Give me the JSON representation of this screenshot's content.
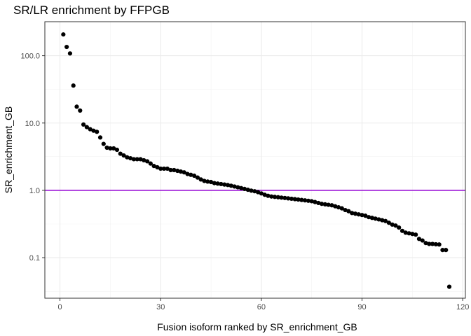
{
  "chart_data": {
    "type": "scatter",
    "title": "SR/LR enrichment by FFPGB",
    "xlabel": "Fusion isoform ranked by SR_enrichment_GB",
    "ylabel": "SR_enrichment_GB",
    "x_scale": "linear",
    "y_scale": "log10",
    "xlim": [
      -4.5,
      120.8
    ],
    "ylim": [
      0.025,
      320
    ],
    "x_ticks": [
      0,
      30,
      60,
      90,
      120
    ],
    "x_tick_labels": [
      "0",
      "30",
      "60",
      "90",
      "120"
    ],
    "y_ticks": [
      0.1,
      1,
      10,
      100
    ],
    "y_tick_labels": [
      "0.1",
      "1.0",
      "10.0",
      "100.0"
    ],
    "grid": true,
    "legend": "none",
    "reference_line": {
      "y": 1.0,
      "color": "#9400D3"
    },
    "point_color": "#000000",
    "x": [
      1,
      2,
      3,
      4,
      5,
      6,
      7,
      8,
      9,
      10,
      11,
      12,
      13,
      14,
      15,
      16,
      17,
      18,
      19,
      20,
      21,
      22,
      23,
      24,
      25,
      26,
      27,
      28,
      29,
      30,
      31,
      32,
      33,
      34,
      35,
      36,
      37,
      38,
      39,
      40,
      41,
      42,
      43,
      44,
      45,
      46,
      47,
      48,
      49,
      50,
      51,
      52,
      53,
      54,
      55,
      56,
      57,
      58,
      59,
      60,
      61,
      62,
      63,
      64,
      65,
      66,
      67,
      68,
      69,
      70,
      71,
      72,
      73,
      74,
      75,
      76,
      77,
      78,
      79,
      80,
      81,
      82,
      83,
      84,
      85,
      86,
      87,
      88,
      89,
      90,
      91,
      92,
      93,
      94,
      95,
      96,
      97,
      98,
      99,
      100,
      101,
      102,
      103,
      104,
      105,
      106,
      107,
      108,
      109,
      110,
      111,
      112,
      113,
      114,
      115,
      116
    ],
    "y": [
      207,
      135,
      108,
      36,
      17.5,
      15.3,
      9.5,
      8.7,
      8.1,
      7.7,
      7.4,
      6.1,
      4.9,
      4.3,
      4.2,
      4.2,
      4.0,
      3.5,
      3.3,
      3.1,
      3.0,
      2.9,
      2.9,
      2.9,
      2.8,
      2.7,
      2.5,
      2.3,
      2.2,
      2.1,
      2.1,
      2.1,
      2.0,
      2.0,
      1.95,
      1.9,
      1.85,
      1.75,
      1.7,
      1.65,
      1.55,
      1.45,
      1.38,
      1.35,
      1.33,
      1.28,
      1.26,
      1.24,
      1.22,
      1.2,
      1.17,
      1.14,
      1.11,
      1.08,
      1.05,
      1.02,
      0.99,
      0.97,
      0.94,
      0.9,
      0.86,
      0.83,
      0.81,
      0.8,
      0.79,
      0.78,
      0.77,
      0.76,
      0.75,
      0.74,
      0.73,
      0.72,
      0.71,
      0.7,
      0.69,
      0.67,
      0.65,
      0.63,
      0.62,
      0.61,
      0.6,
      0.58,
      0.56,
      0.54,
      0.51,
      0.49,
      0.46,
      0.45,
      0.44,
      0.43,
      0.42,
      0.4,
      0.39,
      0.38,
      0.37,
      0.36,
      0.35,
      0.33,
      0.31,
      0.3,
      0.28,
      0.25,
      0.235,
      0.23,
      0.225,
      0.22,
      0.19,
      0.18,
      0.165,
      0.16,
      0.16,
      0.158,
      0.157,
      0.13,
      0.13,
      0.037
    ]
  }
}
